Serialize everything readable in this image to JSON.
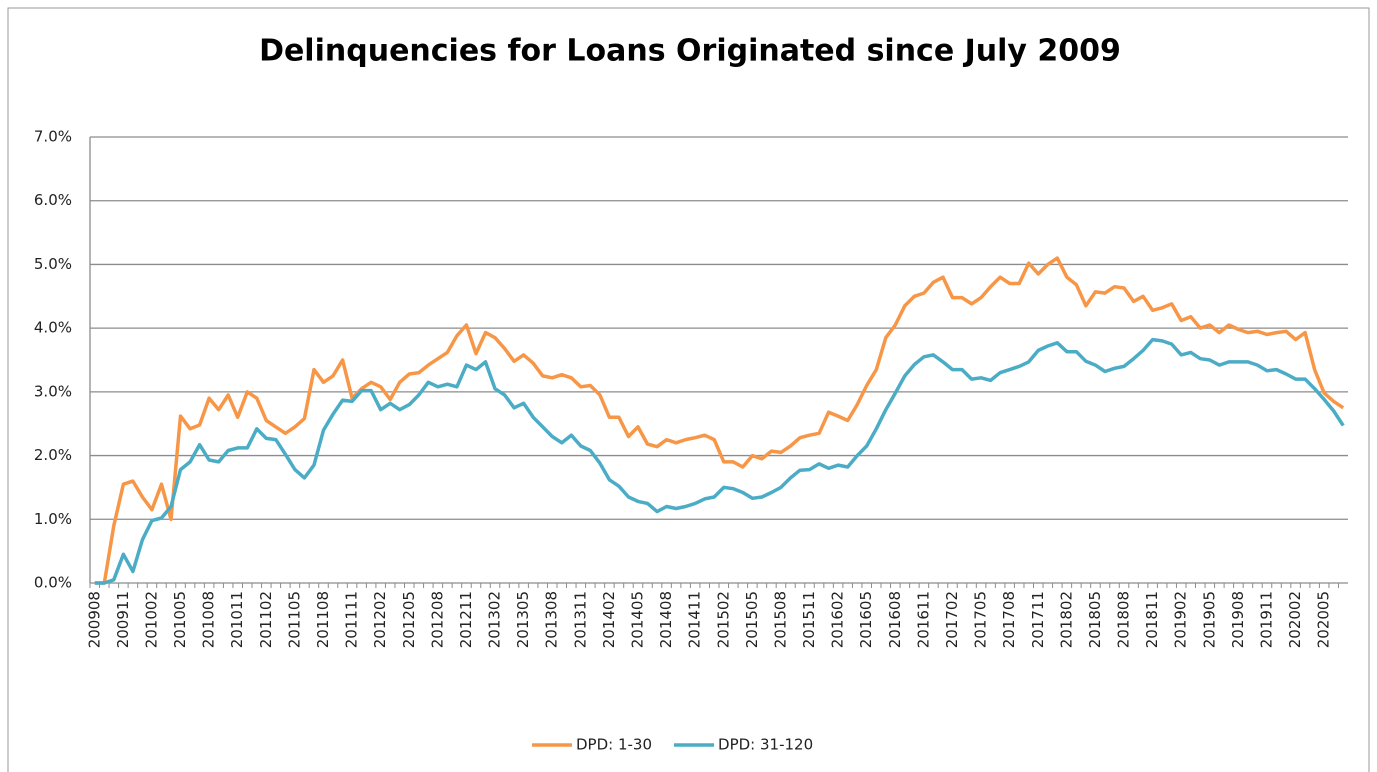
{
  "chart_data": {
    "type": "line",
    "title": "Delinquencies for Loans Originated since July 2009",
    "categories": [
      "200908",
      null,
      null,
      "200911",
      null,
      null,
      "201002",
      null,
      null,
      "201005",
      null,
      null,
      "201008",
      null,
      null,
      "201011",
      null,
      null,
      "201102",
      null,
      null,
      "201105",
      null,
      null,
      "201108",
      null,
      null,
      "201111",
      null,
      null,
      "201202",
      null,
      null,
      "201205",
      null,
      null,
      "201208",
      null,
      null,
      "201211",
      null,
      null,
      "201302",
      null,
      null,
      "201305",
      null,
      null,
      "201308",
      null,
      null,
      "201311",
      null,
      null,
      "201402",
      null,
      null,
      "201405",
      null,
      null,
      "201408",
      null,
      null,
      "201411",
      null,
      null,
      "201502",
      null,
      null,
      "201505",
      null,
      null,
      "201508",
      null,
      null,
      "201511",
      null,
      null,
      "201602",
      null,
      null,
      "201605",
      null,
      null,
      "201608",
      null,
      null,
      "201611",
      null,
      null,
      "201702",
      null,
      null,
      "201705",
      null,
      null,
      "201708",
      null,
      null,
      "201711",
      null,
      null,
      "201802",
      null,
      null,
      "201805",
      null,
      null,
      "201808",
      null,
      null,
      "201811",
      null,
      null,
      "201902",
      null,
      null,
      "201905",
      null,
      null,
      "201908",
      null,
      null,
      "201911",
      null,
      null,
      "202002",
      null,
      null,
      "202005",
      null,
      null
    ],
    "series": [
      {
        "name": "DPD: 1-30",
        "color": "#f79646",
        "values": [
          0,
          0,
          0.9,
          1.55,
          1.6,
          1.35,
          1.15,
          1.55,
          1.0,
          2.62,
          2.42,
          2.48,
          2.9,
          2.72,
          2.95,
          2.6,
          3.0,
          2.9,
          2.55,
          2.45,
          2.35,
          2.45,
          2.58,
          3.35,
          3.15,
          3.25,
          3.5,
          2.9,
          3.05,
          3.15,
          3.08,
          2.88,
          3.15,
          3.28,
          3.3,
          3.42,
          3.52,
          3.62,
          3.88,
          4.05,
          3.6,
          3.93,
          3.85,
          3.68,
          3.48,
          3.58,
          3.45,
          3.25,
          3.22,
          3.27,
          3.22,
          3.08,
          3.1,
          2.95,
          2.6,
          2.6,
          2.3,
          2.45,
          2.18,
          2.14,
          2.25,
          2.2,
          2.25,
          2.28,
          2.32,
          2.25,
          1.9,
          1.9,
          1.82,
          2.0,
          1.95,
          2.07,
          2.05,
          2.15,
          2.28,
          2.32,
          2.35,
          2.68,
          2.62,
          2.55,
          2.8,
          3.1,
          3.35,
          3.85,
          4.05,
          4.35,
          4.5,
          4.55,
          4.72,
          4.8,
          4.48,
          4.48,
          4.38,
          4.48,
          4.65,
          4.8,
          4.7,
          4.7,
          5.02,
          4.85,
          5.0,
          5.1,
          4.8,
          4.68,
          4.35,
          4.57,
          4.55,
          4.65,
          4.63,
          4.42,
          4.5,
          4.28,
          4.32,
          4.38,
          4.12,
          4.18,
          4.0,
          4.05,
          3.93,
          4.05,
          3.98,
          3.93,
          3.95,
          3.9,
          3.93,
          3.95,
          3.82,
          3.93,
          3.35,
          2.98,
          2.85,
          2.75
        ]
      },
      {
        "name": "DPD: 31-120",
        "color": "#4bacc6",
        "values": [
          0,
          0,
          0.05,
          0.45,
          0.18,
          0.68,
          0.98,
          1.02,
          1.2,
          1.78,
          1.9,
          2.17,
          1.93,
          1.9,
          2.08,
          2.12,
          2.12,
          2.42,
          2.27,
          2.25,
          2.02,
          1.78,
          1.65,
          1.85,
          2.4,
          2.65,
          2.87,
          2.85,
          3.02,
          3.02,
          2.72,
          2.82,
          2.72,
          2.8,
          2.95,
          3.15,
          3.08,
          3.12,
          3.08,
          3.42,
          3.35,
          3.47,
          3.05,
          2.95,
          2.75,
          2.82,
          2.6,
          2.45,
          2.3,
          2.2,
          2.32,
          2.15,
          2.08,
          1.88,
          1.62,
          1.52,
          1.35,
          1.28,
          1.25,
          1.12,
          1.2,
          1.17,
          1.2,
          1.25,
          1.32,
          1.35,
          1.5,
          1.48,
          1.42,
          1.33,
          1.35,
          1.42,
          1.5,
          1.65,
          1.77,
          1.78,
          1.87,
          1.8,
          1.85,
          1.82,
          2.0,
          2.15,
          2.42,
          2.72,
          2.98,
          3.25,
          3.43,
          3.55,
          3.58,
          3.47,
          3.35,
          3.35,
          3.2,
          3.22,
          3.18,
          3.3,
          3.35,
          3.4,
          3.47,
          3.65,
          3.72,
          3.77,
          3.63,
          3.63,
          3.48,
          3.42,
          3.32,
          3.37,
          3.4,
          3.52,
          3.65,
          3.82,
          3.8,
          3.75,
          3.58,
          3.62,
          3.52,
          3.5,
          3.42,
          3.47,
          3.47,
          3.47,
          3.42,
          3.33,
          3.35,
          3.28,
          3.2,
          3.2,
          3.05,
          2.88,
          2.7,
          2.47
        ]
      }
    ],
    "ylim": [
      0,
      7
    ],
    "yticks": [
      {
        "value": 0,
        "label": "0.0%"
      },
      {
        "value": 1,
        "label": "1.0%"
      },
      {
        "value": 2,
        "label": "2.0%"
      },
      {
        "value": 3,
        "label": "3.0%"
      },
      {
        "value": 4,
        "label": "4.0%"
      },
      {
        "value": 5,
        "label": "5.0%"
      },
      {
        "value": 6,
        "label": "6.0%"
      },
      {
        "value": 7,
        "label": "7.0%"
      }
    ],
    "grid": true,
    "legend": "bottom"
  }
}
